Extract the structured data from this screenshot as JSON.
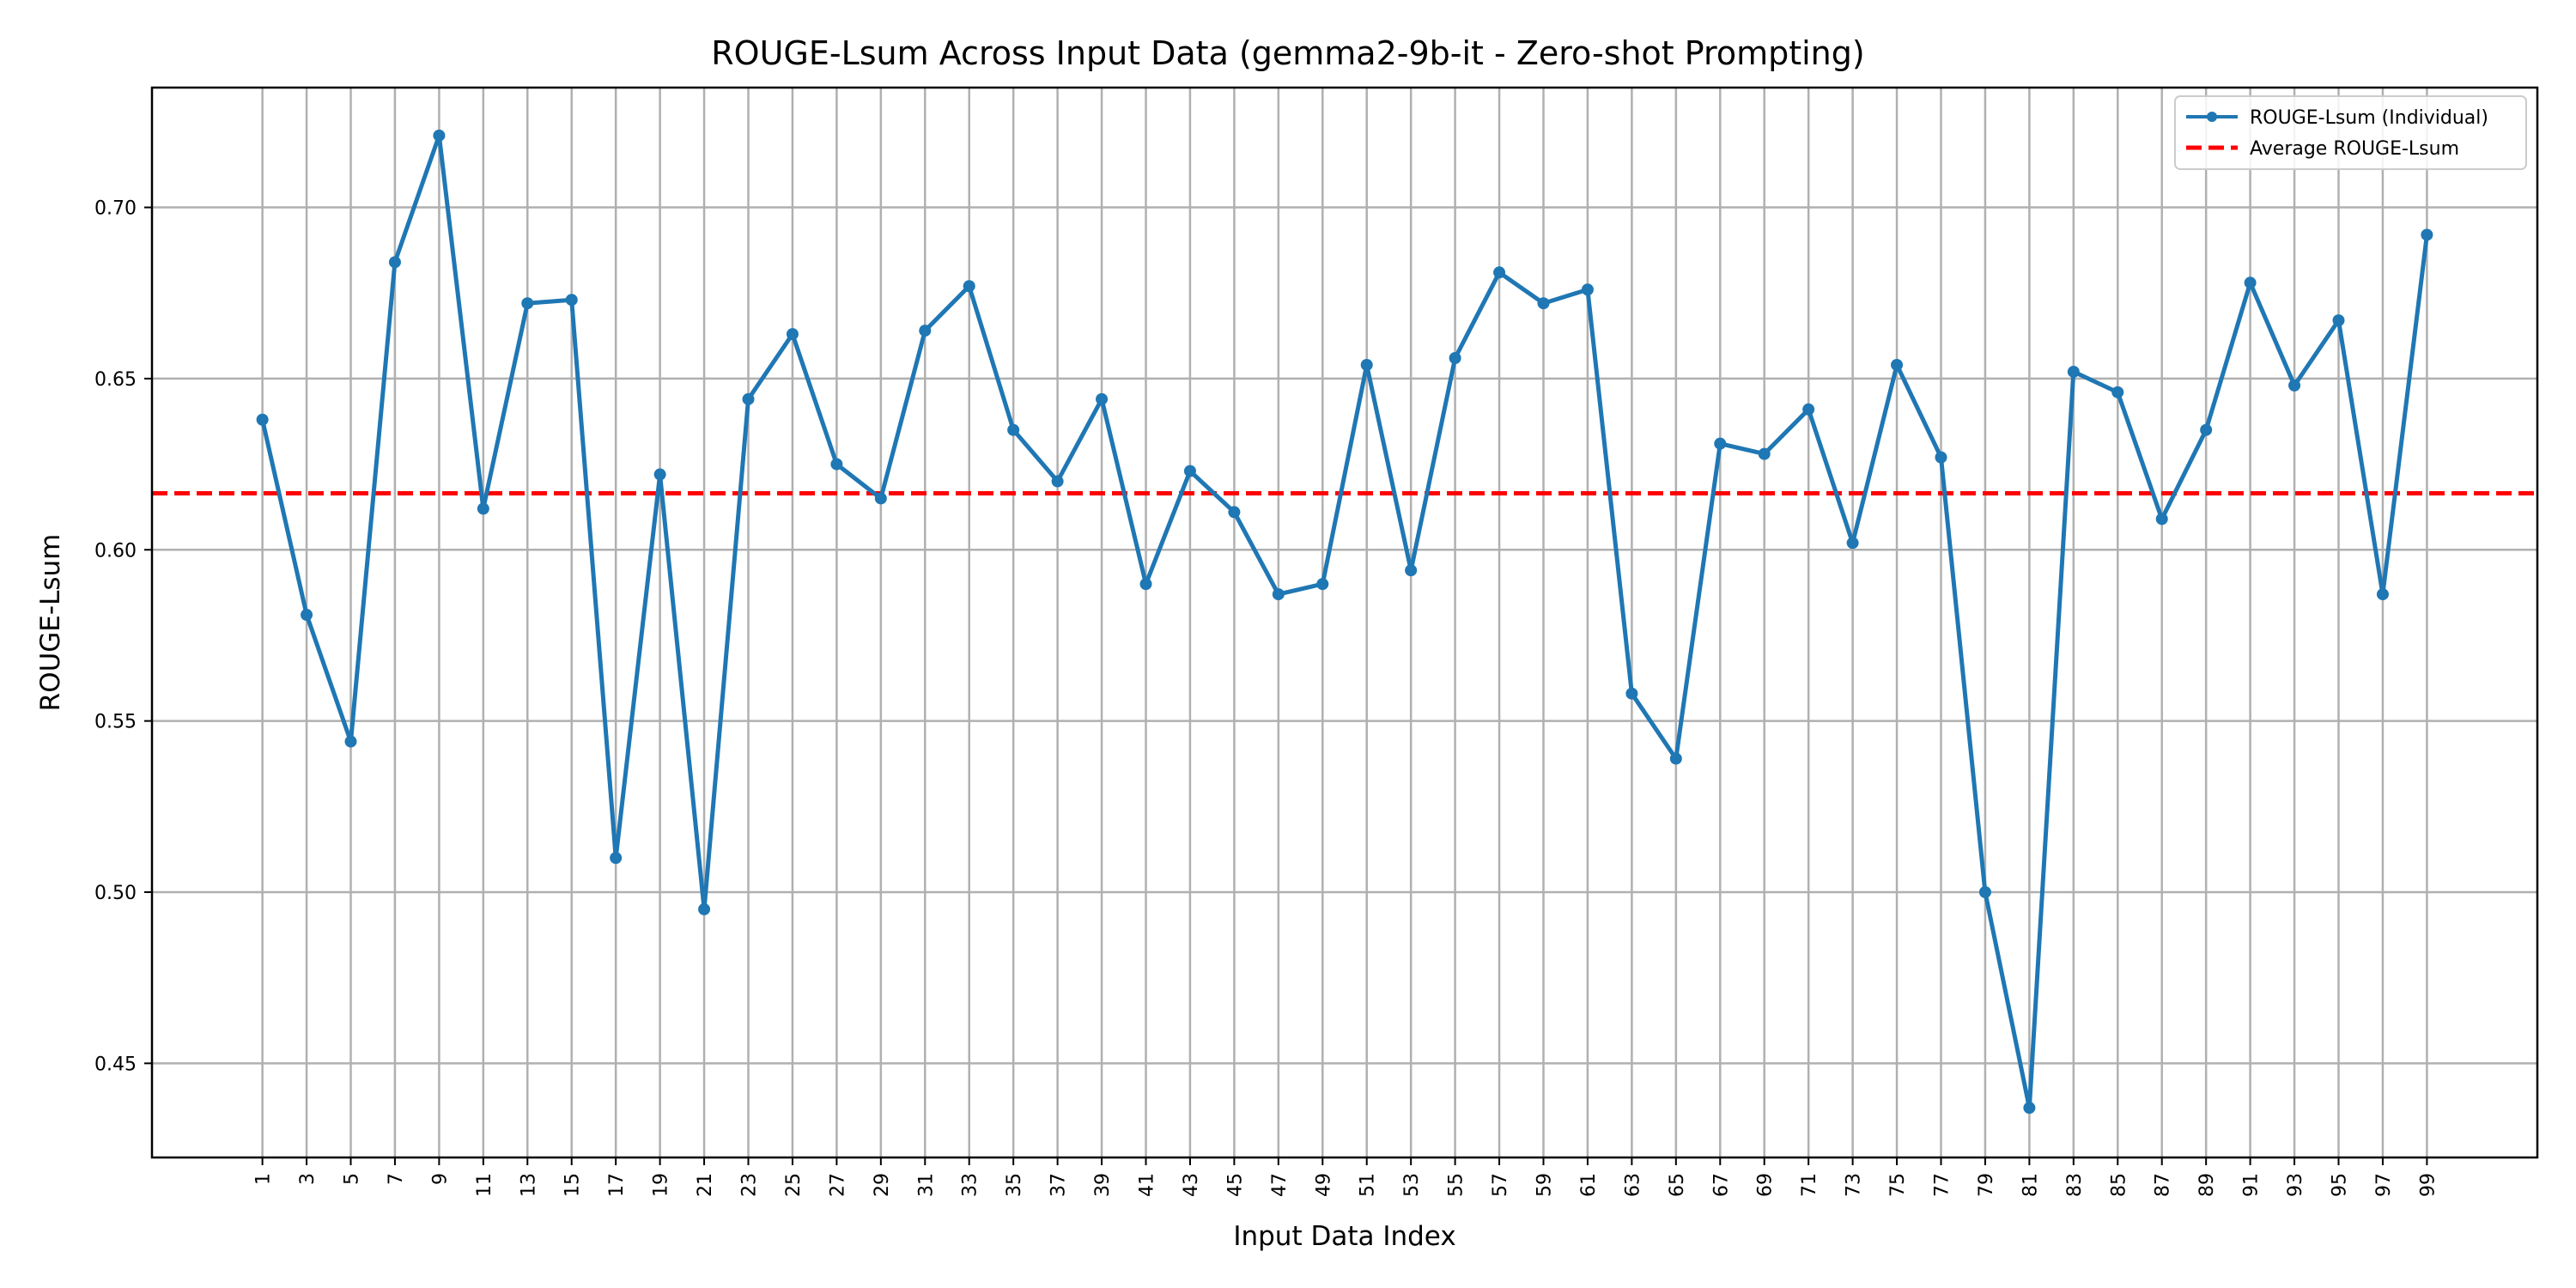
{
  "chart_data": {
    "type": "line",
    "title": "ROUGE-Lsum Across Input Data (gemma2-9b-it - Zero-shot Prompting)",
    "xlabel": "Input Data Index",
    "ylabel": "ROUGE-Lsum",
    "x": [
      1,
      3,
      5,
      7,
      9,
      11,
      13,
      15,
      17,
      19,
      21,
      23,
      25,
      27,
      29,
      31,
      33,
      35,
      37,
      39,
      41,
      43,
      45,
      47,
      49,
      51,
      53,
      55,
      57,
      59,
      61,
      63,
      65,
      67,
      69,
      71,
      73,
      75,
      77,
      79,
      81,
      83,
      85,
      87,
      89,
      91,
      93,
      95,
      97,
      99
    ],
    "xlim": [
      -4,
      104
    ],
    "ylim": [
      0.4225,
      0.735
    ],
    "yticks": [
      0.45,
      0.5,
      0.55,
      0.6,
      0.65,
      0.7
    ],
    "ytick_labels": [
      "0.45",
      "0.50",
      "0.55",
      "0.60",
      "0.65",
      "0.70"
    ],
    "grid": true,
    "legend_position": "upper right",
    "series": [
      {
        "name": "ROUGE-Lsum (Individual)",
        "color": "#1f77b4",
        "style": "solid-with-markers",
        "values": [
          0.638,
          0.581,
          0.544,
          0.684,
          0.721,
          0.612,
          0.672,
          0.673,
          0.51,
          0.622,
          0.495,
          0.644,
          0.663,
          0.625,
          0.615,
          0.664,
          0.677,
          0.635,
          0.62,
          0.644,
          0.59,
          0.623,
          0.611,
          0.587,
          0.59,
          0.654,
          0.594,
          0.656,
          0.681,
          0.672,
          0.676,
          0.558,
          0.539,
          0.631,
          0.628,
          0.641,
          0.602,
          0.654,
          0.627,
          0.5,
          0.437,
          0.652,
          0.646,
          0.609,
          0.635,
          0.678,
          0.648,
          0.667,
          0.587,
          0.692
        ]
      },
      {
        "name": "Average ROUGE-Lsum",
        "color": "#ff0000",
        "style": "dashed",
        "value": 0.6165
      }
    ]
  }
}
